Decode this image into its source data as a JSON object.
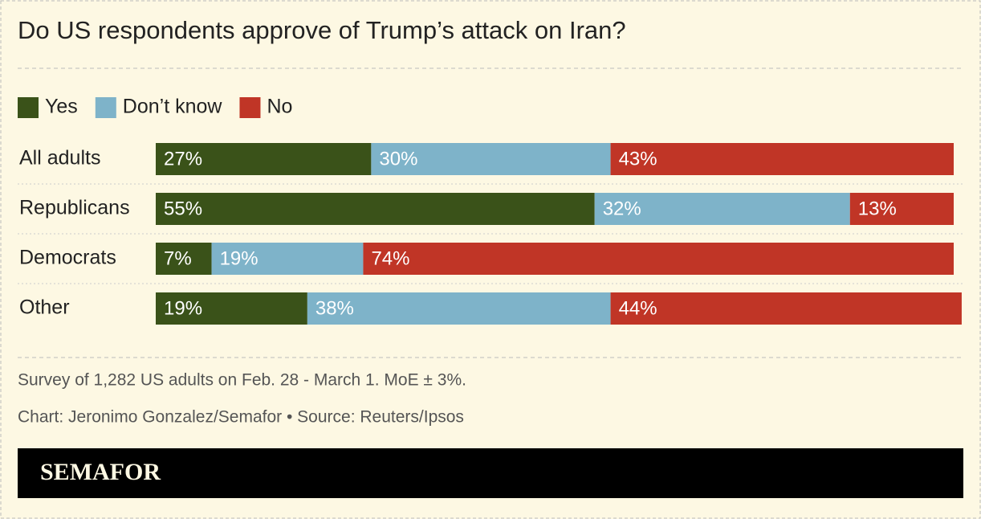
{
  "chart_data": {
    "type": "bar",
    "orientation": "horizontal",
    "stacked": true,
    "title": "Do US respondents approve of Trump’s attack on Iran?",
    "categories": [
      "All adults",
      "Republicans",
      "Democrats",
      "Other"
    ],
    "xlim": [
      0,
      100
    ],
    "series": [
      {
        "name": "Yes",
        "color": "#3a5219",
        "values": [
          27,
          55,
          7,
          19
        ],
        "value_labels": [
          "27%",
          "55%",
          "7%",
          "19%"
        ]
      },
      {
        "name": "Don’t know",
        "color": "#7eb3c9",
        "values": [
          30,
          32,
          19,
          38
        ],
        "value_labels": [
          "30%",
          "32%",
          "19%",
          "38%"
        ]
      },
      {
        "name": "No",
        "color": "#c03526",
        "values": [
          43,
          13,
          74,
          44
        ],
        "value_labels": [
          "43%",
          "13%",
          "74%",
          "44%"
        ]
      }
    ]
  },
  "footer": {
    "note": "Survey of 1,282 US adults on Feb. 28 - March 1. MoE ± 3%.",
    "credit": "Chart: Jeronimo Gonzalez/Semafor • Source: Reuters/Ipsos",
    "logo": "SEMAFOR"
  }
}
